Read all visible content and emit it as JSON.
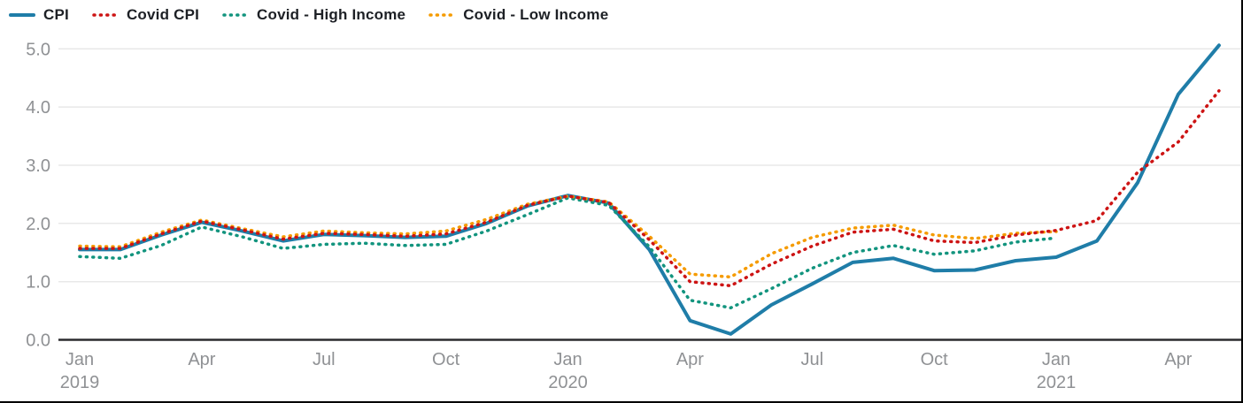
{
  "chart_data": {
    "type": "line",
    "title": "",
    "xlabel": "",
    "ylabel": "",
    "legend_position": "top-left",
    "grid": true,
    "y_ticks": [
      0.0,
      1.0,
      2.0,
      3.0,
      4.0,
      5.0
    ],
    "ylim": [
      0,
      5.2
    ],
    "x_tick_labels": [
      {
        "i": 0,
        "month": "Jan",
        "year": "2019"
      },
      {
        "i": 3,
        "month": "Apr"
      },
      {
        "i": 6,
        "month": "Jul"
      },
      {
        "i": 9,
        "month": "Oct"
      },
      {
        "i": 12,
        "month": "Jan",
        "year": "2020"
      },
      {
        "i": 15,
        "month": "Apr"
      },
      {
        "i": 18,
        "month": "Jul"
      },
      {
        "i": 21,
        "month": "Oct"
      },
      {
        "i": 24,
        "month": "Jan",
        "year": "2021"
      },
      {
        "i": 27,
        "month": "Apr"
      }
    ],
    "x": [
      "Jan 2019",
      "Feb 2019",
      "Mar 2019",
      "Apr 2019",
      "May 2019",
      "Jun 2019",
      "Jul 2019",
      "Aug 2019",
      "Sep 2019",
      "Oct 2019",
      "Nov 2019",
      "Dec 2019",
      "Jan 2020",
      "Feb 2020",
      "Mar 2020",
      "Apr 2020",
      "May 2020",
      "Jun 2020",
      "Jul 2020",
      "Aug 2020",
      "Sep 2020",
      "Oct 2020",
      "Nov 2020",
      "Dec 2020",
      "Jan 2021",
      "Feb 2021",
      "Mar 2021",
      "Apr 2021",
      "May 2021"
    ],
    "series": [
      {
        "name": "CPI",
        "color": "#1f7da8",
        "line_style": "solid",
        "values": [
          1.55,
          1.55,
          1.8,
          2.02,
          1.87,
          1.7,
          1.81,
          1.79,
          1.76,
          1.78,
          2.0,
          2.3,
          2.48,
          2.35,
          1.55,
          0.33,
          0.1,
          0.6,
          0.96,
          1.33,
          1.4,
          1.19,
          1.2,
          1.36,
          1.42,
          1.7,
          2.7,
          4.22,
          5.06
        ]
      },
      {
        "name": "Covid CPI",
        "color": "#cd1414",
        "line_style": "dotted",
        "values": [
          1.57,
          1.57,
          1.82,
          2.04,
          1.89,
          1.73,
          1.83,
          1.81,
          1.78,
          1.82,
          2.02,
          2.31,
          2.47,
          2.36,
          1.72,
          1.0,
          0.93,
          1.3,
          1.61,
          1.85,
          1.9,
          1.7,
          1.67,
          1.8,
          1.88,
          2.05,
          2.88,
          3.4,
          4.28
        ]
      },
      {
        "name": "Covid - High Income",
        "color": "#12947e",
        "line_style": "dotted",
        "values": [
          1.43,
          1.4,
          1.62,
          1.94,
          1.77,
          1.57,
          1.64,
          1.66,
          1.62,
          1.64,
          1.87,
          2.15,
          2.44,
          2.31,
          1.6,
          0.68,
          0.55,
          0.88,
          1.23,
          1.5,
          1.62,
          1.47,
          1.53,
          1.68,
          1.75,
          null,
          null,
          null,
          null
        ]
      },
      {
        "name": "Covid - Low Income",
        "color": "#f59b00",
        "line_style": "dotted",
        "values": [
          1.61,
          1.6,
          1.85,
          2.06,
          1.91,
          1.77,
          1.87,
          1.84,
          1.82,
          1.87,
          2.07,
          2.33,
          2.47,
          2.37,
          1.78,
          1.13,
          1.08,
          1.48,
          1.76,
          1.92,
          1.97,
          1.8,
          1.74,
          1.83,
          1.86,
          null,
          null,
          null,
          null
        ]
      }
    ],
    "axis_colors": {
      "tick_label": "#8f9194",
      "gridline": "#e8e8e8",
      "zero_axis": "#2b2b2e"
    }
  }
}
